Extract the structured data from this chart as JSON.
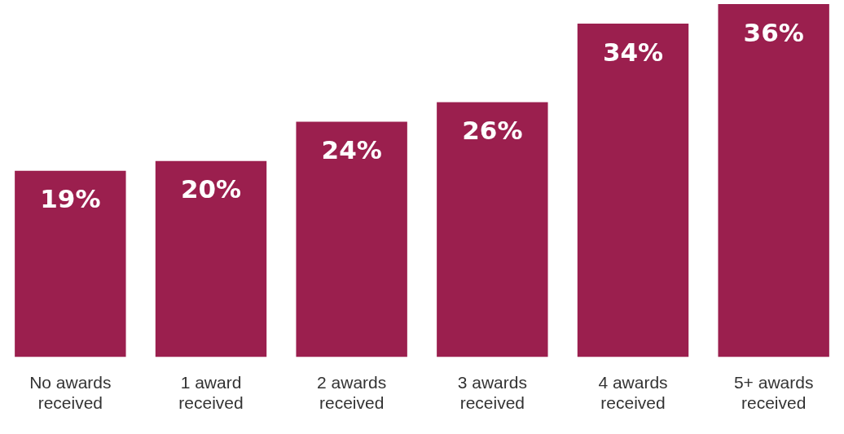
{
  "chart_data": {
    "type": "bar",
    "categories": [
      "No awards received",
      "1 award received",
      "2 awards received",
      "3 awards received",
      "4 awards received",
      "5+ awards received"
    ],
    "values": [
      19,
      20,
      24,
      26,
      34,
      36
    ],
    "value_labels": [
      "19%",
      "20%",
      "24%",
      "26%",
      "34%",
      "36%"
    ],
    "color": "#9b1f4e",
    "grid": false,
    "legend": false
  }
}
